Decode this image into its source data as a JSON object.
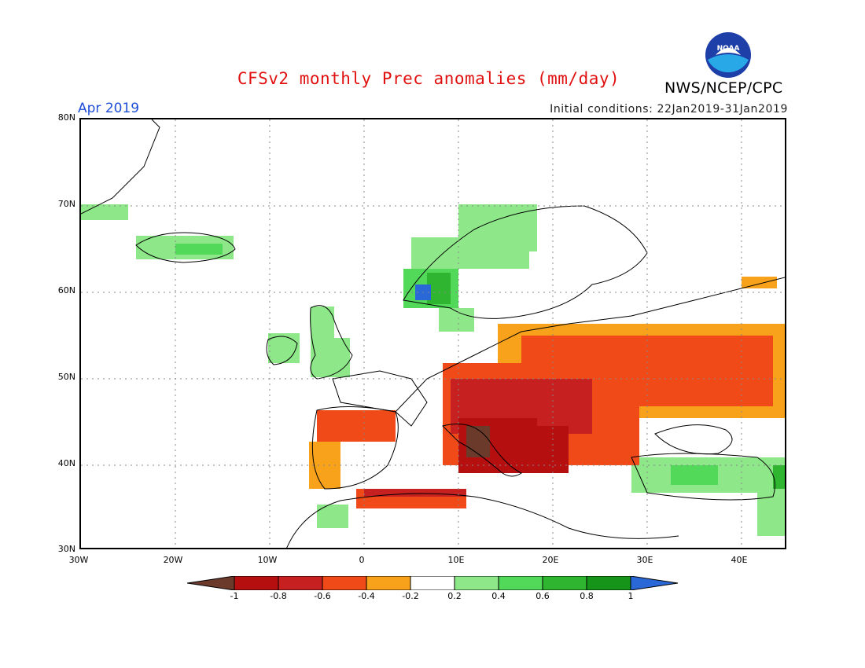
{
  "header": {
    "title": "CFSv2 monthly Prec anomalies (mm/day)",
    "agency": "NWS/NCEP/CPC",
    "logo_text": "NOAA",
    "period": "Apr 2019",
    "initial_conditions": "Initial conditions: 22Jan2019-31Jan2019"
  },
  "map": {
    "lat_ticks": [
      "80N",
      "70N",
      "60N",
      "50N",
      "40N",
      "30N"
    ],
    "lon_ticks": [
      "30W",
      "20W",
      "10W",
      "0",
      "10E",
      "20E",
      "30E",
      "40E"
    ],
    "colors": {
      "land_outline": "#000000",
      "grid": "#888888"
    }
  },
  "colorbar": {
    "labels": [
      "-1",
      "-0.8",
      "-0.6",
      "-0.4",
      "-0.2",
      "0.2",
      "0.4",
      "0.6",
      "0.8",
      "1"
    ],
    "colors": [
      "#6b3a2a",
      "#b50f0f",
      "#c62020",
      "#f04a18",
      "#f8a21b",
      "#ffffff",
      "#8ee889",
      "#52d95a",
      "#2fb52f",
      "#16941a",
      "#2a68d8"
    ]
  },
  "anomaly_regions": [
    {
      "name": "italy-balkans-core",
      "value": -0.8
    },
    {
      "name": "central-europe",
      "value": -0.6
    },
    {
      "name": "eastern-europe",
      "value": -0.4
    },
    {
      "name": "iberia-east",
      "value": -0.4
    },
    {
      "name": "north-africa-coast",
      "value": -0.6
    },
    {
      "name": "scandinavia-coast",
      "value": 0.4
    },
    {
      "name": "iceland",
      "value": 0.4
    },
    {
      "name": "british-isles",
      "value": 0.4
    },
    {
      "name": "turkey",
      "value": 0.4
    },
    {
      "name": "west-norway",
      "value": 1
    }
  ]
}
